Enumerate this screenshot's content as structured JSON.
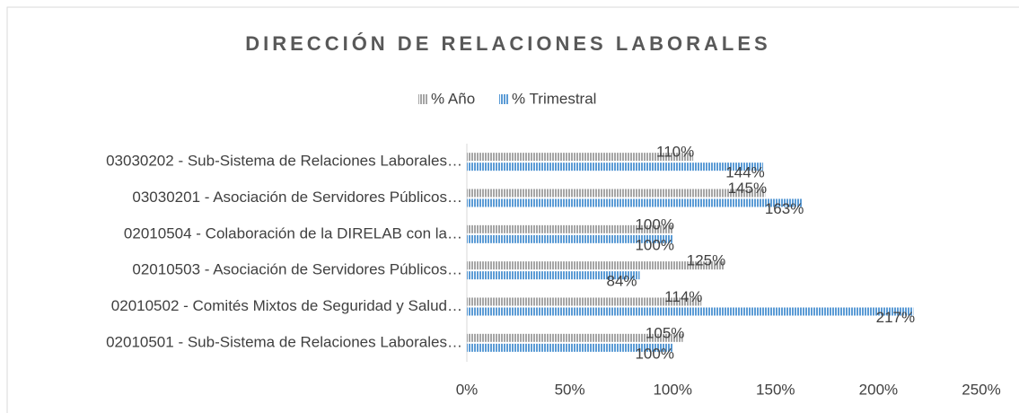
{
  "chart_data": {
    "type": "hbar",
    "title": "DIRECCIÓN DE RELACIONES LABORALES",
    "categories": [
      "03030202 - Sub-Sistema de Relaciones Laborales…",
      "03030201 - Asociación de Servidores Públicos…",
      "02010504 - Colaboración de la DIRELAB con la…",
      "02010503 - Asociación de Servidores Públicos…",
      "02010502 - Comités Mixtos de Seguridad y Salud…",
      "02010501 - Sub-Sistema de Relaciones Laborales…"
    ],
    "series": [
      {
        "name": "% Año",
        "color": "#a5a5a5",
        "values": [
          110,
          145,
          100,
          125,
          114,
          105
        ],
        "value_labels": [
          "110%",
          "145%",
          "100%",
          "125%",
          "114%",
          "105%"
        ]
      },
      {
        "name": "% Trimestral",
        "color": "#5b9bd5",
        "values": [
          144,
          163,
          100,
          84,
          217,
          100
        ],
        "value_labels": [
          "144%",
          "163%",
          "100%",
          "84%",
          "217%",
          "100%"
        ]
      }
    ],
    "xlim": [
      0,
      250
    ],
    "xticks": [
      {
        "value": 0,
        "label": "0%"
      },
      {
        "value": 50,
        "label": "50%"
      },
      {
        "value": 100,
        "label": "100%"
      },
      {
        "value": 150,
        "label": "150%"
      },
      {
        "value": 200,
        "label": "200%"
      },
      {
        "value": 250,
        "label": "250%"
      }
    ],
    "legend": "top"
  }
}
